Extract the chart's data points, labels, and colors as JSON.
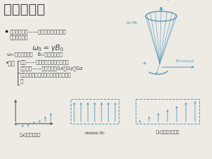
{
  "title": "基础理论：",
  "background_color": "#eeebe5",
  "text_color": "#444444",
  "blue_color": "#5599bb",
  "dark_blue": "#336688",
  "sub_a": "（a）线形梯度场",
  "sub_b": "（b）静磁场 $B_0$",
  "sub_c": "（c）叠加后的磁场"
}
